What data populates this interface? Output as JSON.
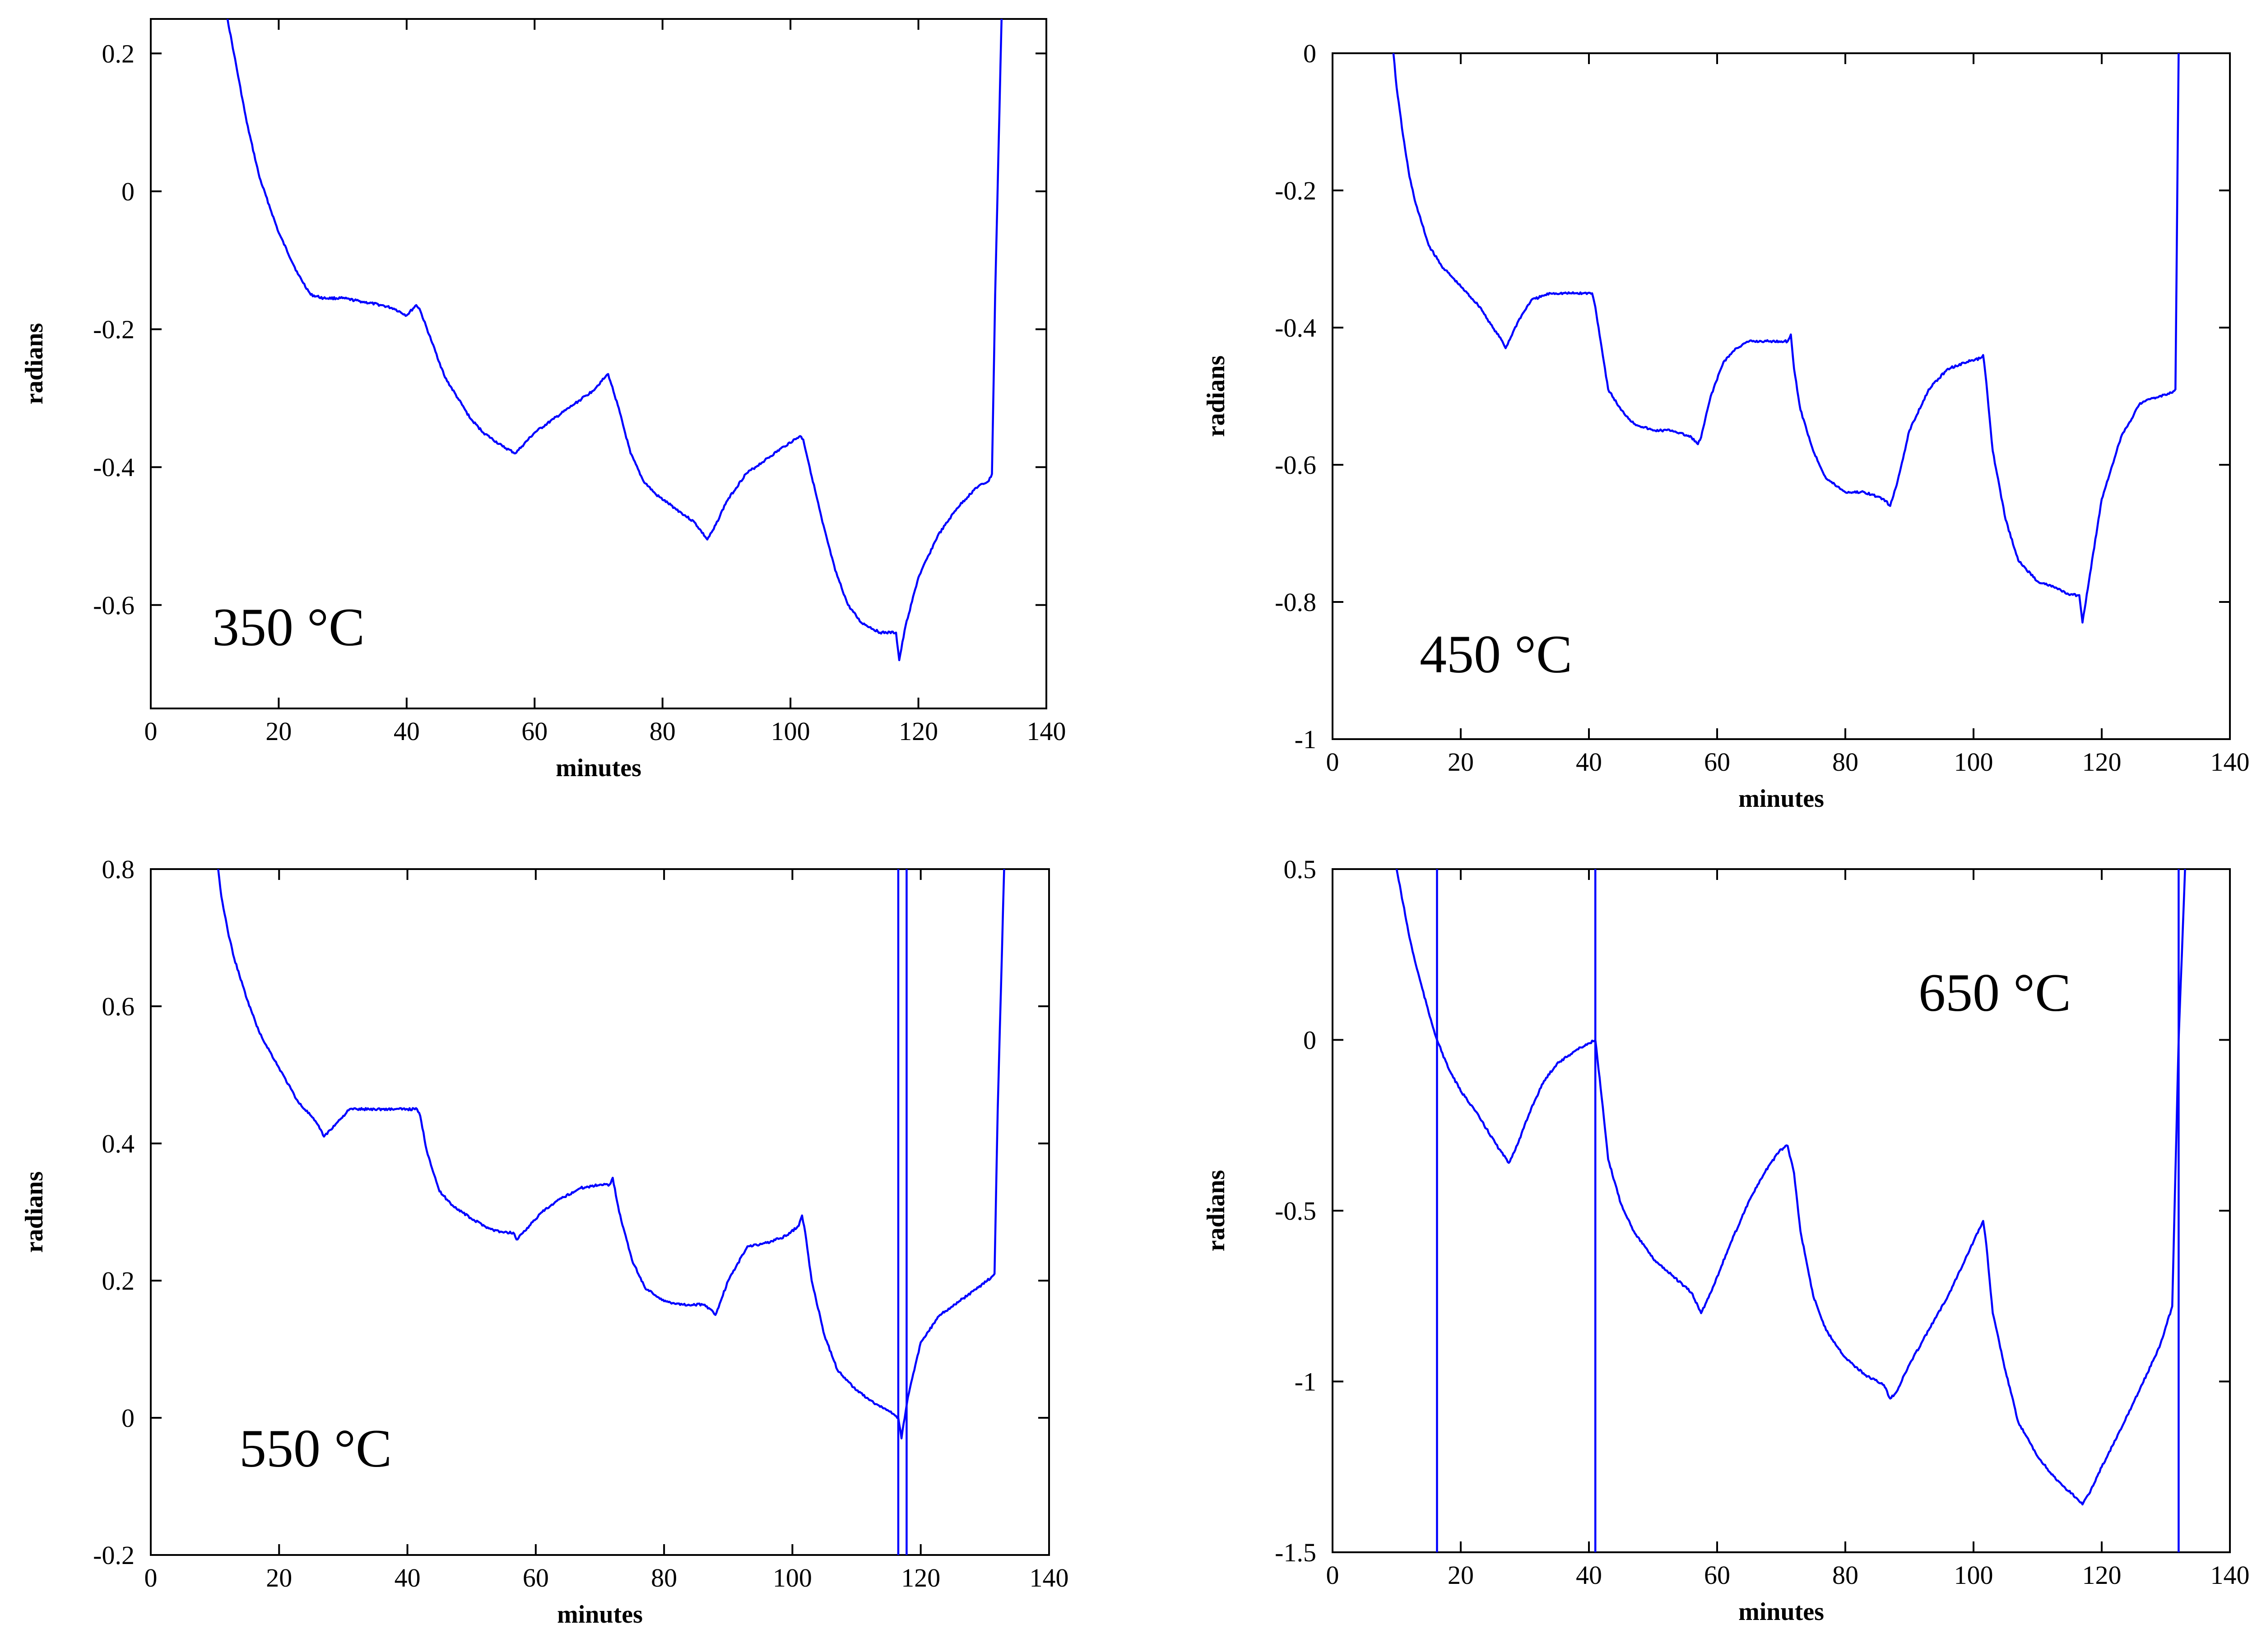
{
  "colors": {
    "series": "#0000ff",
    "axis": "#000000",
    "background": "#ffffff"
  },
  "chart_data": [
    {
      "type": "line",
      "annotation": "350 °C",
      "xlabel": "minutes",
      "ylabel": "radians",
      "xlim": [
        0,
        140
      ],
      "ylim": [
        -0.75,
        0.25
      ],
      "xticks": [
        "0",
        "20",
        "40",
        "60",
        "80",
        "100",
        "120",
        "140"
      ],
      "yticks": [
        {
          "value": 0.2,
          "label": "0.2"
        },
        {
          "value": 0,
          "label": "0"
        },
        {
          "value": -0.2,
          "label": "-0.2"
        },
        {
          "value": -0.4,
          "label": "-0.4"
        },
        {
          "value": -0.6,
          "label": "-0.6"
        }
      ],
      "grid": false,
      "spikes": [],
      "x": [
        12,
        13,
        15,
        17,
        20,
        23,
        25,
        27,
        30,
        33,
        36,
        38,
        40,
        41.5,
        42,
        44,
        46,
        48,
        50,
        52,
        55,
        57,
        58,
        60,
        63,
        66,
        69,
        71,
        71.5,
        72,
        73,
        75,
        77,
        79,
        82,
        85,
        87,
        88,
        90,
        93,
        96,
        99,
        101.5,
        102,
        103,
        105,
        107,
        109,
        111,
        114,
        116.5,
        117,
        118,
        120,
        123,
        126,
        129,
        131,
        131.5,
        132,
        133
      ],
      "y": [
        0.25,
        0.2,
        0.1,
        0.02,
        -0.06,
        -0.12,
        -0.15,
        -0.155,
        -0.155,
        -0.16,
        -0.165,
        -0.17,
        -0.18,
        -0.165,
        -0.17,
        -0.22,
        -0.27,
        -0.3,
        -0.33,
        -0.35,
        -0.37,
        -0.38,
        -0.37,
        -0.35,
        -0.33,
        -0.31,
        -0.29,
        -0.27,
        -0.265,
        -0.28,
        -0.31,
        -0.38,
        -0.42,
        -0.44,
        -0.46,
        -0.48,
        -0.505,
        -0.49,
        -0.45,
        -0.41,
        -0.39,
        -0.37,
        -0.355,
        -0.36,
        -0.4,
        -0.48,
        -0.55,
        -0.6,
        -0.625,
        -0.64,
        -0.64,
        -0.68,
        -0.63,
        -0.56,
        -0.5,
        -0.46,
        -0.43,
        -0.42,
        -0.41,
        -0.15,
        0.25
      ]
    },
    {
      "type": "line",
      "annotation": "450 °C",
      "xlabel": "minutes",
      "ylabel": "radians",
      "xlim": [
        0,
        140
      ],
      "ylim": [
        -1,
        0
      ],
      "xticks": [
        "0",
        "20",
        "40",
        "60",
        "80",
        "100",
        "120",
        "140"
      ],
      "yticks": [
        {
          "value": 0,
          "label": "0"
        },
        {
          "value": -0.2,
          "label": "-0.2"
        },
        {
          "value": -0.4,
          "label": "-0.4"
        },
        {
          "value": -0.6,
          "label": "-0.6"
        },
        {
          "value": -0.8,
          "label": "-0.8"
        },
        {
          "value": -1,
          "label": "-1"
        }
      ],
      "grid": false,
      "spikes": [],
      "x": [
        9.5,
        10,
        11,
        12,
        13,
        15,
        17,
        20,
        23,
        25,
        26.5,
        27,
        29,
        31,
        34,
        37,
        39,
        40.5,
        41,
        42,
        43,
        45,
        47,
        50,
        53,
        56,
        57,
        57.5,
        59,
        61,
        63,
        65,
        68,
        70,
        71,
        71.5,
        72,
        73,
        75,
        77,
        80,
        83,
        86,
        87,
        88,
        90,
        93,
        96,
        99,
        101,
        101.5,
        102,
        103,
        105,
        107,
        110,
        113,
        115,
        116.5,
        117,
        118,
        120,
        123,
        126,
        129,
        131,
        131.5,
        132
      ],
      "y": [
        0,
        -0.05,
        -0.12,
        -0.18,
        -0.22,
        -0.28,
        -0.31,
        -0.34,
        -0.37,
        -0.4,
        -0.42,
        -0.43,
        -0.39,
        -0.36,
        -0.35,
        -0.35,
        -0.35,
        -0.35,
        -0.37,
        -0.43,
        -0.49,
        -0.52,
        -0.54,
        -0.55,
        -0.55,
        -0.56,
        -0.57,
        -0.56,
        -0.5,
        -0.45,
        -0.43,
        -0.42,
        -0.42,
        -0.42,
        -0.42,
        -0.41,
        -0.46,
        -0.52,
        -0.58,
        -0.62,
        -0.64,
        -0.64,
        -0.65,
        -0.66,
        -0.63,
        -0.55,
        -0.49,
        -0.46,
        -0.45,
        -0.445,
        -0.44,
        -0.48,
        -0.58,
        -0.68,
        -0.74,
        -0.77,
        -0.78,
        -0.79,
        -0.79,
        -0.83,
        -0.77,
        -0.65,
        -0.56,
        -0.51,
        -0.5,
        -0.495,
        -0.49,
        0
      ]
    },
    {
      "type": "line",
      "annotation": "550 °C",
      "xlabel": "minutes",
      "ylabel": "radians",
      "xlim": [
        0,
        140
      ],
      "ylim": [
        -0.2,
        0.8
      ],
      "xticks": [
        "0",
        "20",
        "40",
        "60",
        "80",
        "100",
        "120",
        "140"
      ],
      "yticks": [
        {
          "value": 0.8,
          "label": "0.8"
        },
        {
          "value": 0.6,
          "label": "0.6"
        },
        {
          "value": 0.4,
          "label": "0.4"
        },
        {
          "value": 0.2,
          "label": "0.2"
        },
        {
          "value": 0,
          "label": "0"
        },
        {
          "value": -0.2,
          "label": "-0.2"
        }
      ],
      "grid": false,
      "spikes": [
        116.5,
        117.8
      ],
      "x": [
        10.5,
        11,
        12,
        13,
        15,
        17,
        20,
        23,
        25,
        26.5,
        27,
        29,
        31,
        34,
        37,
        40,
        41.5,
        42,
        43,
        45,
        47,
        50,
        53,
        55,
        56.5,
        57,
        59,
        61,
        64,
        67,
        70,
        71.5,
        72,
        73,
        75,
        77,
        80,
        83,
        86,
        87,
        88,
        90,
        93,
        96,
        99,
        101,
        101.5,
        102,
        103,
        105,
        107,
        110,
        113,
        115,
        116.5,
        117,
        118,
        120,
        123,
        126,
        129,
        131,
        131.5,
        132,
        133
      ],
      "y": [
        0.8,
        0.76,
        0.71,
        0.67,
        0.61,
        0.56,
        0.51,
        0.46,
        0.44,
        0.42,
        0.41,
        0.43,
        0.45,
        0.45,
        0.45,
        0.45,
        0.45,
        0.44,
        0.39,
        0.33,
        0.31,
        0.29,
        0.275,
        0.27,
        0.27,
        0.26,
        0.28,
        0.3,
        0.32,
        0.335,
        0.34,
        0.34,
        0.35,
        0.3,
        0.23,
        0.19,
        0.17,
        0.165,
        0.165,
        0.16,
        0.15,
        0.2,
        0.25,
        0.255,
        0.265,
        0.28,
        0.295,
        0.27,
        0.2,
        0.12,
        0.07,
        0.04,
        0.02,
        0.01,
        0.0,
        -0.03,
        0.03,
        0.11,
        0.15,
        0.17,
        0.19,
        0.205,
        0.21,
        0.45,
        0.8
      ]
    },
    {
      "type": "line",
      "annotation": "650 °C",
      "xlabel": "minutes",
      "ylabel": "radians",
      "xlim": [
        0,
        140
      ],
      "ylim": [
        -1.5,
        0.5
      ],
      "xticks": [
        "0",
        "20",
        "40",
        "60",
        "80",
        "100",
        "120",
        "140"
      ],
      "yticks": [
        {
          "value": 0.5,
          "label": "0.5"
        },
        {
          "value": 0,
          "label": "0"
        },
        {
          "value": -0.5,
          "label": "-0.5"
        },
        {
          "value": -1,
          "label": "-1"
        },
        {
          "value": -1.5,
          "label": "-1.5"
        }
      ],
      "grid": false,
      "spikes": [
        16.3,
        41,
        132
      ],
      "x": [
        10,
        11,
        12,
        13,
        14,
        15,
        16.3,
        18,
        20,
        22,
        24,
        26,
        27.5,
        29,
        31,
        33,
        35,
        38,
        40,
        41,
        42,
        43,
        45,
        47,
        50,
        53,
        56,
        57.5,
        59,
        62,
        65,
        68,
        70,
        71,
        72,
        73,
        75,
        77,
        80,
        83,
        86,
        87,
        88,
        90,
        93,
        96,
        99,
        101.5,
        102,
        103,
        105,
        107,
        110,
        113,
        116,
        117,
        118,
        120,
        123,
        126,
        129,
        131,
        132,
        133
      ],
      "y": [
        0.5,
        0.4,
        0.3,
        0.22,
        0.15,
        0.08,
        0.0,
        -0.08,
        -0.15,
        -0.2,
        -0.26,
        -0.32,
        -0.36,
        -0.3,
        -0.2,
        -0.12,
        -0.07,
        -0.03,
        -0.01,
        0.0,
        -0.17,
        -0.35,
        -0.48,
        -0.56,
        -0.64,
        -0.69,
        -0.74,
        -0.8,
        -0.74,
        -0.6,
        -0.47,
        -0.37,
        -0.32,
        -0.31,
        -0.39,
        -0.56,
        -0.75,
        -0.85,
        -0.93,
        -0.98,
        -1.01,
        -1.05,
        -1.03,
        -0.95,
        -0.85,
        -0.75,
        -0.63,
        -0.53,
        -0.6,
        -0.8,
        -0.97,
        -1.12,
        -1.22,
        -1.29,
        -1.34,
        -1.36,
        -1.33,
        -1.25,
        -1.14,
        -1.02,
        -0.9,
        -0.78,
        0.0,
        0.5
      ]
    }
  ]
}
